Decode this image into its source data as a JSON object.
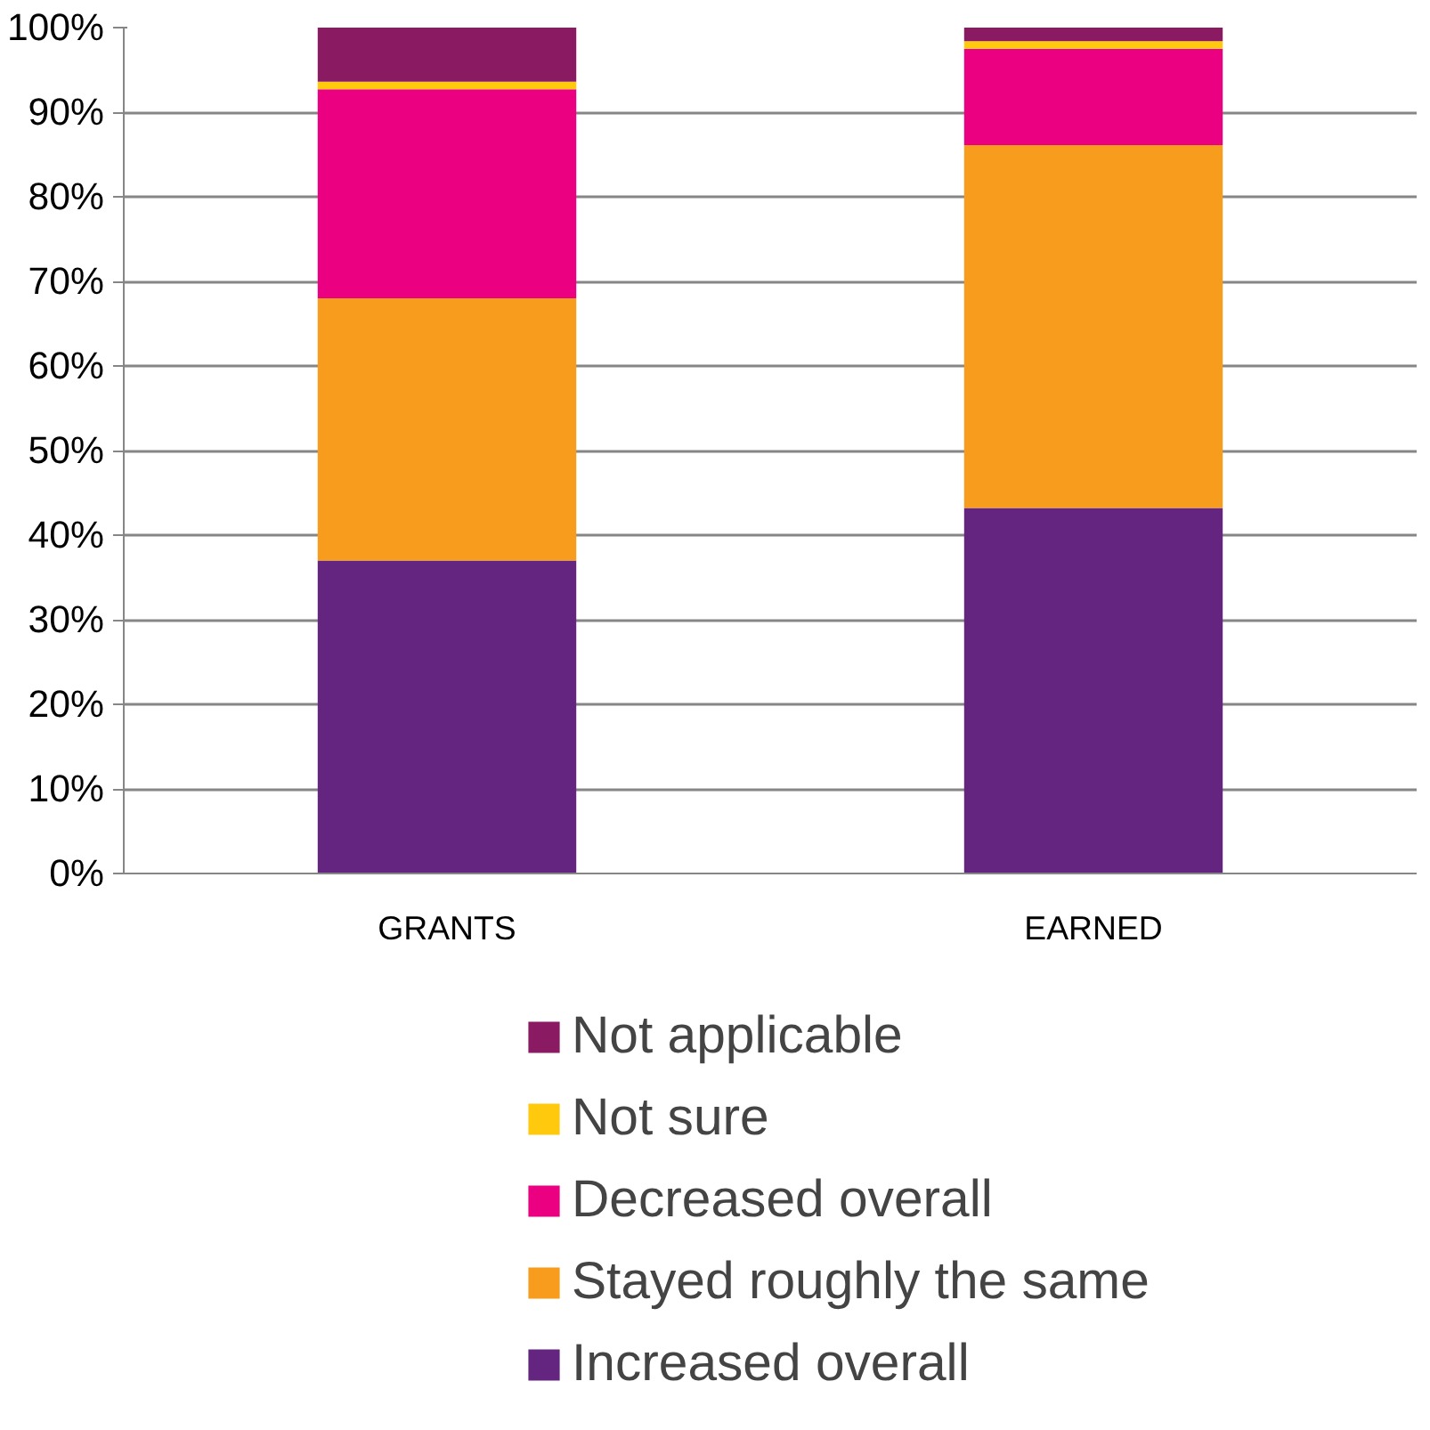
{
  "chart_data": {
    "type": "bar",
    "stacked": true,
    "categories": [
      "GRANTS",
      "EARNED"
    ],
    "series": [
      {
        "name": "Increased overall",
        "color": "#642580",
        "values": [
          37,
          43.2
        ]
      },
      {
        "name": "Stayed roughly the same",
        "color": "#f79c1d",
        "values": [
          31,
          42.9
        ]
      },
      {
        "name": "Decreased overall",
        "color": "#ea0080",
        "values": [
          24.7,
          11.4
        ]
      },
      {
        "name": "Not sure",
        "color": "#ffc90e",
        "values": [
          0.9,
          0.9
        ]
      },
      {
        "name": "Not applicable",
        "color": "#8a1a62",
        "values": [
          6.4,
          1.6
        ]
      }
    ],
    "ylim": [
      0,
      100
    ],
    "yticks": [
      {
        "value": 0,
        "label": "0%"
      },
      {
        "value": 10,
        "label": "10%"
      },
      {
        "value": 20,
        "label": "20%"
      },
      {
        "value": 30,
        "label": "30%"
      },
      {
        "value": 40,
        "label": "40%"
      },
      {
        "value": 50,
        "label": "50%"
      },
      {
        "value": 60,
        "label": "60%"
      },
      {
        "value": 70,
        "label": "70%"
      },
      {
        "value": 80,
        "label": "80%"
      },
      {
        "value": 90,
        "label": "90%"
      },
      {
        "value": 100,
        "label": "100%"
      }
    ],
    "grid": "y",
    "legend": "bottom"
  }
}
